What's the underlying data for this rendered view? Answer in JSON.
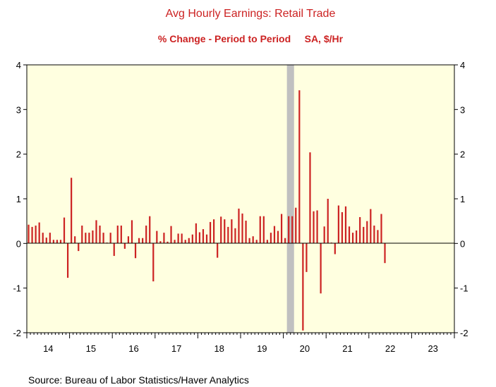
{
  "chart_data": {
    "type": "bar",
    "title": "Avg Hourly Earnings: Retail Trade",
    "subtitle": "% Change - Period to Period     SA, $/Hr",
    "source": "Source:  Bureau of Labor Statistics/Haver Analytics",
    "x_tick_labels": [
      "14",
      "15",
      "16",
      "17",
      "18",
      "19",
      "20",
      "21",
      "22",
      "23"
    ],
    "y_ticks": [
      4,
      3,
      2,
      1,
      0,
      -1,
      -2
    ],
    "ylim": [
      -2,
      4
    ],
    "x_range": [
      "2014-01",
      "2023-12"
    ],
    "grid": false,
    "recession_shade": {
      "from": "2020-02",
      "to": "2020-04"
    },
    "colors": {
      "bars": "#cc2222",
      "plot_background": "#ffffe0",
      "recession_shade": "#c0c0c0",
      "title": "#cc2222"
    },
    "series": [
      {
        "start": "2014-01",
        "frequency": "monthly",
        "values": [
          0.42,
          0.37,
          0.4,
          0.47,
          0.24,
          0.13,
          0.24,
          0.08,
          0.08,
          0.08,
          0.58,
          -0.77,
          1.47,
          0.16,
          -0.17,
          0.4,
          0.24,
          0.24,
          0.29,
          0.52,
          0.4,
          0.24,
          0.02,
          0.24,
          -0.28,
          0.4,
          0.4,
          -0.12,
          0.16,
          0.52,
          -0.33,
          0.12,
          0.12,
          0.4,
          0.61,
          -0.85,
          0.28,
          0.05,
          0.24,
          0.04,
          0.39,
          0.08,
          0.22,
          0.22,
          0.08,
          0.12,
          0.2,
          0.45,
          0.25,
          0.32,
          0.2,
          0.48,
          0.54,
          -0.32,
          0.6,
          0.54,
          0.37,
          0.54,
          0.34,
          0.78,
          0.67,
          0.51,
          0.12,
          0.16,
          0.08,
          0.61,
          0.61,
          0.08,
          0.24,
          0.39,
          0.28,
          0.66,
          0.12,
          0.61,
          0.61,
          0.8,
          3.43,
          -1.95,
          -0.64,
          2.04,
          0.72,
          0.74,
          -1.12,
          0.38,
          1.0,
          0.02,
          -0.24,
          0.85,
          0.7,
          0.83,
          0.38,
          0.24,
          0.29,
          0.59,
          0.37,
          0.5,
          0.77,
          0.4,
          0.3,
          0.66,
          -0.44
        ]
      }
    ]
  }
}
